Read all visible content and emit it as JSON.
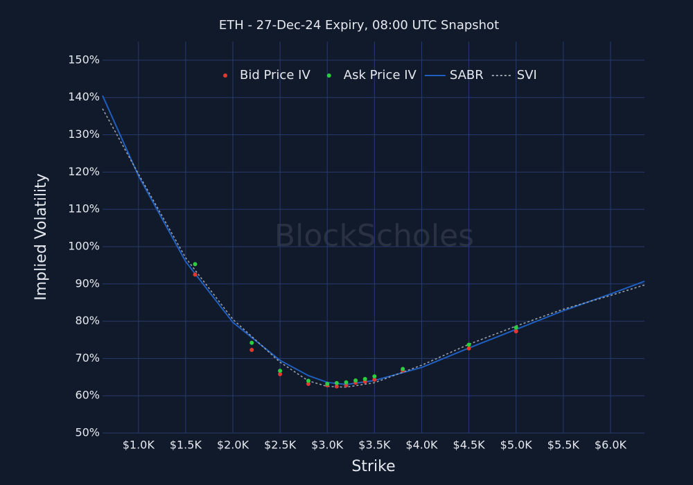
{
  "chart_data": {
    "type": "scatter",
    "title": "ETH - 27-Dec-24 Expiry, 08:00 UTC Snapshot",
    "watermark": "BlockScholes",
    "xlabel": "Strike",
    "ylabel": "Implied Volatility",
    "xlim": [
      620,
      6360
    ],
    "ylim": [
      50,
      155
    ],
    "xticks": [
      {
        "value": 1000,
        "label": "$1.0K"
      },
      {
        "value": 1500,
        "label": "$1.5K"
      },
      {
        "value": 2000,
        "label": "$2.0K"
      },
      {
        "value": 2500,
        "label": "$2.5K"
      },
      {
        "value": 3000,
        "label": "$3.0K"
      },
      {
        "value": 3500,
        "label": "$3.5K"
      },
      {
        "value": 4000,
        "label": "$4.0K"
      },
      {
        "value": 4500,
        "label": "$4.5K"
      },
      {
        "value": 5000,
        "label": "$5.0K"
      },
      {
        "value": 5500,
        "label": "$5.5K"
      },
      {
        "value": 6000,
        "label": "$6.0K"
      }
    ],
    "yticks": [
      {
        "value": 50,
        "label": "50%"
      },
      {
        "value": 60,
        "label": "60%"
      },
      {
        "value": 70,
        "label": "70%"
      },
      {
        "value": 80,
        "label": "80%"
      },
      {
        "value": 90,
        "label": "90%"
      },
      {
        "value": 100,
        "label": "100%"
      },
      {
        "value": 110,
        "label": "110%"
      },
      {
        "value": 120,
        "label": "120%"
      },
      {
        "value": 130,
        "label": "130%"
      },
      {
        "value": 140,
        "label": "140%"
      },
      {
        "value": 150,
        "label": "150%"
      }
    ],
    "grid": true,
    "legend": "top",
    "series": [
      {
        "name": "Bid Price IV",
        "color": "#e0392f",
        "mode": "markers",
        "x": [
          1600,
          2200,
          2500,
          2800,
          3000,
          3100,
          3200,
          3300,
          3400,
          3500,
          3800,
          4500,
          5000
        ],
        "values": [
          92.5,
          72.3,
          65.8,
          63.2,
          62.8,
          62.5,
          62.8,
          63.5,
          63.8,
          64.3,
          66.8,
          72.7,
          77.3
        ]
      },
      {
        "name": "Ask Price IV",
        "color": "#2ecc40",
        "mode": "markers",
        "x": [
          1600,
          2200,
          2500,
          2800,
          3000,
          3100,
          3200,
          3300,
          3400,
          3500,
          3800,
          4500,
          5000
        ],
        "values": [
          95.3,
          74.2,
          66.7,
          64.0,
          63.2,
          63.4,
          63.6,
          64.1,
          64.5,
          65.2,
          67.2,
          73.7,
          78.3
        ]
      },
      {
        "name": "SABR",
        "color": "#1f5fbf",
        "mode": "line",
        "dash": false,
        "x": [
          620,
          1000,
          1500,
          2000,
          2500,
          2800,
          3000,
          3200,
          3500,
          4000,
          4500,
          5000,
          5500,
          6000,
          6360
        ],
        "values": [
          140.5,
          119,
          96,
          79.7,
          69.5,
          65.4,
          63.6,
          63,
          64.1,
          67.6,
          72.8,
          77.8,
          82.8,
          87.3,
          90.7
        ]
      },
      {
        "name": "SVI",
        "color": "#9aa0a8",
        "mode": "line",
        "dash": true,
        "x": [
          620,
          1000,
          1500,
          2000,
          2500,
          2800,
          3000,
          3200,
          3500,
          4000,
          4500,
          5000,
          5500,
          6000,
          6360
        ],
        "values": [
          137,
          119.5,
          97,
          80.5,
          69,
          64,
          62.5,
          62.3,
          63.5,
          68.2,
          73.8,
          78.7,
          83.2,
          86.9,
          89.7
        ]
      }
    ]
  }
}
